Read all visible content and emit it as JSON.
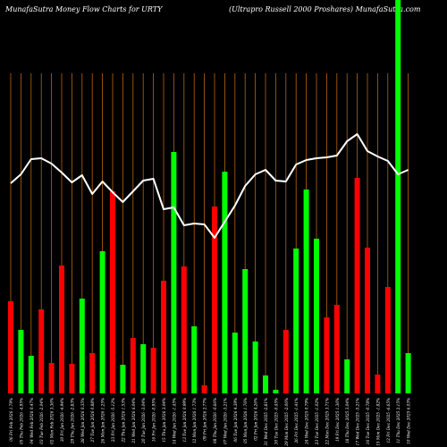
{
  "header": {
    "left_title": "MunafaSutra  Money Flow  Charts for URTY",
    "right_title": "(Ultrapro  Russell 2000  Proshares) MunafaSutra.com"
  },
  "colors": {
    "background": "#000000",
    "up": "#00ff00",
    "down": "#ff0000",
    "line": "#ffffff",
    "grid": "#b8650f"
  },
  "chart_data": {
    "type": "bar",
    "title": "MunafaSutra  Money Flow  Charts for URTY",
    "subtitle": "(Ultrapro  Russell 2000  Proshares) MunafaSutra.com",
    "grid": true,
    "categories": [
      "06 Fri Feb 2026 1.79%",
      "05 Thu Feb 2026 -4.95%",
      "04 Wed Feb 2026 0.47%",
      "03 Tue Feb 2026 -2.04%",
      "02 Mon Feb 2026 3.36%",
      "30 Fri Jan 2026 -4.94%",
      "29 Thu Jan 2026 -2.83%",
      "28 Wed Jan 2026 0.35%",
      "27 Tue Jan 2026 0.88%",
      "26 Mon Jan 2026 1.25%",
      "23 Fri Jan 2026 -5.12%",
      "22 Thu Jan 2026 1.53%",
      "21 Wed Jan 2026 6.04%",
      "20 Tue Jan 2026 -3.04%",
      "16 Fri Jan 2026 -0.95%",
      "15 Thu Jan 2026 3.04%",
      "14 Wed Jan 2026 -1.45%",
      "13 Tue Jan 2026 0.99%",
      "12 Mon Jan 2026 1.73%",
      "09 Fri Jan 2026 2.77%",
      "08 Thu Jan 2026 -0.66%",
      "07 Wed Jan 2026 -3.21%",
      "06 Tue Jan 2026 4.39%",
      "05 Mon Jan 2026 1.76%",
      "02 Fri Jan 2026 4.26%",
      "31 Wed Dec 2025 -2.81%",
      "30 Tue Dec 2025 -0.45%",
      "29 Mon Dec 2025 -2.06%",
      "26 Fri Dec 2025 -1.41%",
      "24 Wed Dec 2025 0.79%",
      "23 Tue Dec 2025 -1.02%",
      "22 Mon Dec 2025 3.71%",
      "19 Fri Dec 2025 1.36%",
      "18 Thu Dec 2025 3.04%",
      "17 Wed Dec 2025 -5.21%",
      "16 Tue Dec 2025 -0.78%",
      "15 Mon Dec 2025 -1.82%",
      "12 Fri Dec 2025 -6.65%",
      "11 Thu Dec 2025 2.15%",
      "10 Wed Dec 2025 6.03%"
    ],
    "series": [
      {
        "values": [
          103,
          71,
          42,
          94,
          34,
          143,
          33,
          106,
          45,
          159,
          226,
          32,
          62,
          55,
          51,
          126,
          270,
          142,
          75,
          9,
          209,
          248,
          68,
          139,
          58,
          20,
          4,
          71,
          162,
          228,
          173,
          85,
          99,
          38,
          241,
          163,
          21,
          119,
          457,
          45
        ],
        "colors": [
          "down",
          "up",
          "up",
          "down",
          "down",
          "down",
          "down",
          "up",
          "down",
          "up",
          "down",
          "up",
          "down",
          "up",
          "down",
          "down",
          "up",
          "down",
          "up",
          "down",
          "down",
          "up",
          "up",
          "up",
          "up",
          "up",
          "up",
          "down",
          "up",
          "up",
          "up",
          "down",
          "down",
          "up",
          "down",
          "down",
          "down",
          "down",
          "up",
          "up"
        ]
      },
      {
        "line_values": [
          235,
          245,
          262,
          263,
          257,
          247,
          236,
          244,
          223,
          237,
          225,
          214,
          226,
          238,
          240,
          206,
          208,
          188,
          190,
          189,
          174,
          192,
          210,
          232,
          245,
          250,
          238,
          237,
          256,
          261,
          263,
          264,
          266,
          282,
          290,
          271,
          265,
          260,
          245,
          250
        ]
      }
    ]
  }
}
